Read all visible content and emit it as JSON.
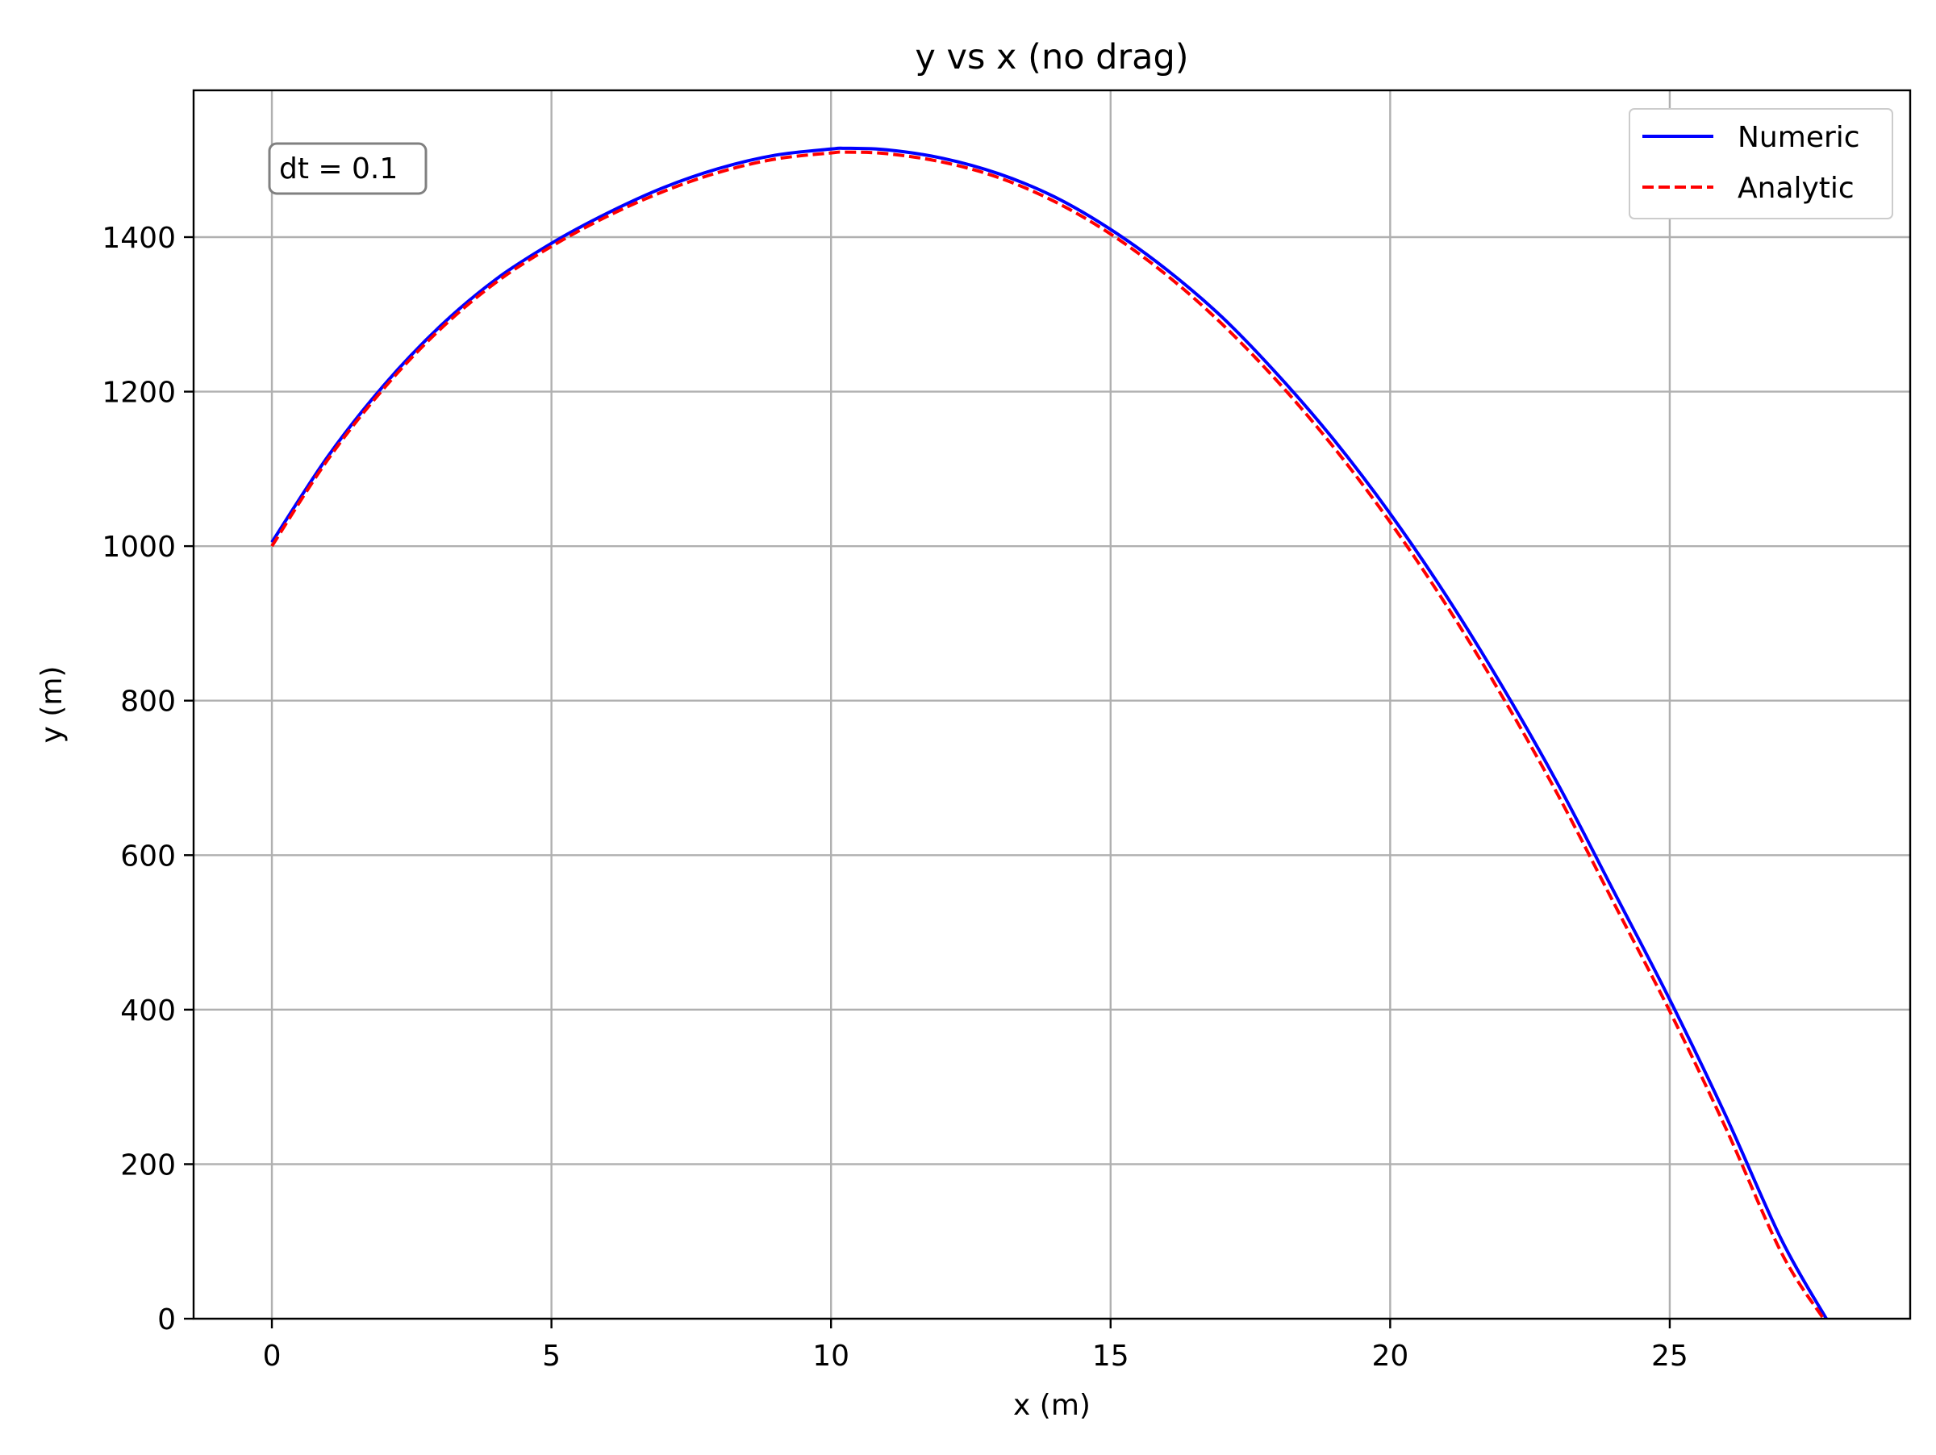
{
  "chart_data": {
    "type": "line",
    "title": "y vs x (no drag)",
    "xlabel": "x (m)",
    "ylabel": "y (m)",
    "xlim": [
      -1.4,
      29.3
    ],
    "ylim": [
      0,
      1590
    ],
    "xticks": [
      0,
      5,
      10,
      15,
      20,
      25
    ],
    "yticks": [
      0,
      200,
      400,
      600,
      800,
      1000,
      1200,
      1400
    ],
    "grid": true,
    "legend_position": "top-right",
    "annotation": "dt = 0.1",
    "series": [
      {
        "name": "Numeric",
        "color": "#0000ff",
        "style": "solid",
        "x": [
          0,
          1,
          2,
          3,
          4,
          5,
          6,
          7,
          8,
          9,
          10,
          10.25,
          11,
          12,
          13,
          14,
          15,
          16,
          17,
          18,
          19,
          20,
          21,
          22,
          23,
          24,
          25,
          26,
          27,
          27.8
        ],
        "y": [
          1005,
          1116,
          1208,
          1284,
          1345,
          1392,
          1431,
          1464,
          1489,
          1506,
          1514,
          1515,
          1513,
          1502,
          1482,
          1452,
          1410,
          1358,
          1296,
          1221,
          1137,
          1042,
          936,
          819,
          692,
          553,
          413,
          263,
          102,
          0
        ]
      },
      {
        "name": "Analytic",
        "color": "#ff0000",
        "style": "dashed",
        "x": [
          0,
          1,
          2,
          3,
          4,
          5,
          6,
          7,
          8,
          9,
          10,
          10.25,
          11,
          12,
          13,
          14,
          15,
          16,
          17,
          18,
          19,
          20,
          21,
          22,
          23,
          24,
          25,
          26,
          27,
          27.75
        ],
        "y": [
          1000,
          1112,
          1204,
          1280,
          1341,
          1388,
          1427,
          1459,
          1484,
          1501,
          1509,
          1510,
          1508,
          1497,
          1477,
          1446,
          1404,
          1351,
          1287,
          1212,
          1127,
          1031,
          924,
          806,
          678,
          538,
          398,
          247,
          85,
          0
        ]
      }
    ]
  }
}
